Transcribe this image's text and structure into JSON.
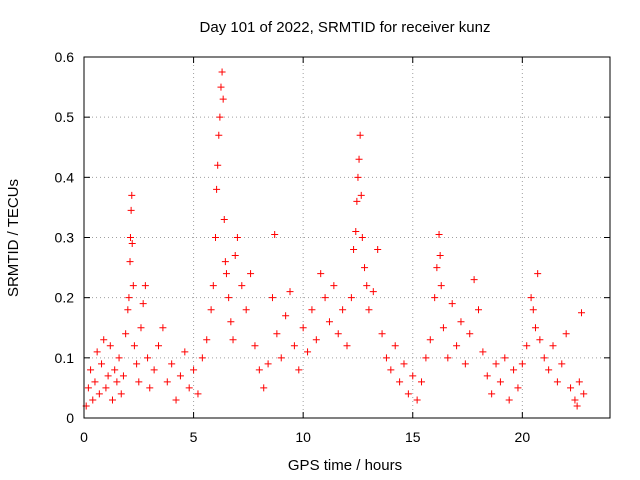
{
  "chart_data": {
    "type": "scatter",
    "title": "Day 101 of 2022, SRMTID for receiver kunz",
    "xlabel": "GPS time / hours",
    "ylabel": "SRMTID / TECUs",
    "xlim": [
      0,
      24
    ],
    "ylim": [
      0,
      0.6
    ],
    "grid": true,
    "marker": "+",
    "color": "#ff0000",
    "x_ticks": [
      0,
      5,
      10,
      15,
      20
    ],
    "x_tick_labels": [
      "0",
      "5",
      "10",
      "15",
      "20"
    ],
    "y_ticks": [
      0,
      0.1,
      0.2,
      0.3,
      0.4,
      0.5,
      0.6
    ],
    "y_tick_labels": [
      "0",
      "0.1",
      "0.2",
      "0.3",
      "0.4",
      "0.5",
      "0.6"
    ],
    "series": [
      {
        "name": "SRMTID",
        "points": [
          [
            0.1,
            0.02
          ],
          [
            0.2,
            0.05
          ],
          [
            0.3,
            0.08
          ],
          [
            0.4,
            0.03
          ],
          [
            0.5,
            0.06
          ],
          [
            0.6,
            0.11
          ],
          [
            0.7,
            0.04
          ],
          [
            0.8,
            0.09
          ],
          [
            0.9,
            0.13
          ],
          [
            1.0,
            0.05
          ],
          [
            1.1,
            0.07
          ],
          [
            1.2,
            0.12
          ],
          [
            1.3,
            0.03
          ],
          [
            1.4,
            0.08
          ],
          [
            1.5,
            0.06
          ],
          [
            1.6,
            0.1
          ],
          [
            1.7,
            0.04
          ],
          [
            1.8,
            0.07
          ],
          [
            1.9,
            0.14
          ],
          [
            2.0,
            0.18
          ],
          [
            2.05,
            0.2
          ],
          [
            2.1,
            0.26
          ],
          [
            2.12,
            0.3
          ],
          [
            2.15,
            0.345
          ],
          [
            2.18,
            0.37
          ],
          [
            2.2,
            0.29
          ],
          [
            2.25,
            0.22
          ],
          [
            2.3,
            0.12
          ],
          [
            2.4,
            0.09
          ],
          [
            2.5,
            0.06
          ],
          [
            2.6,
            0.15
          ],
          [
            2.7,
            0.19
          ],
          [
            2.8,
            0.22
          ],
          [
            2.9,
            0.1
          ],
          [
            3.0,
            0.05
          ],
          [
            3.2,
            0.08
          ],
          [
            3.4,
            0.12
          ],
          [
            3.6,
            0.15
          ],
          [
            3.8,
            0.06
          ],
          [
            4.0,
            0.09
          ],
          [
            4.2,
            0.03
          ],
          [
            4.4,
            0.07
          ],
          [
            4.6,
            0.11
          ],
          [
            4.8,
            0.05
          ],
          [
            5.0,
            0.08
          ],
          [
            5.2,
            0.04
          ],
          [
            5.4,
            0.1
          ],
          [
            5.6,
            0.13
          ],
          [
            5.8,
            0.18
          ],
          [
            5.9,
            0.22
          ],
          [
            6.0,
            0.3
          ],
          [
            6.05,
            0.38
          ],
          [
            6.1,
            0.42
          ],
          [
            6.15,
            0.47
          ],
          [
            6.2,
            0.5
          ],
          [
            6.25,
            0.55
          ],
          [
            6.3,
            0.575
          ],
          [
            6.35,
            0.53
          ],
          [
            6.4,
            0.33
          ],
          [
            6.45,
            0.26
          ],
          [
            6.5,
            0.24
          ],
          [
            6.6,
            0.2
          ],
          [
            6.7,
            0.16
          ],
          [
            6.8,
            0.13
          ],
          [
            6.9,
            0.27
          ],
          [
            7.0,
            0.3
          ],
          [
            7.2,
            0.22
          ],
          [
            7.4,
            0.18
          ],
          [
            7.6,
            0.24
          ],
          [
            7.8,
            0.12
          ],
          [
            8.0,
            0.08
          ],
          [
            8.2,
            0.05
          ],
          [
            8.4,
            0.09
          ],
          [
            8.6,
            0.2
          ],
          [
            8.7,
            0.305
          ],
          [
            8.8,
            0.14
          ],
          [
            9.0,
            0.1
          ],
          [
            9.2,
            0.17
          ],
          [
            9.4,
            0.21
          ],
          [
            9.6,
            0.12
          ],
          [
            9.8,
            0.08
          ],
          [
            10.0,
            0.15
          ],
          [
            10.2,
            0.11
          ],
          [
            10.4,
            0.18
          ],
          [
            10.6,
            0.13
          ],
          [
            10.8,
            0.24
          ],
          [
            11.0,
            0.2
          ],
          [
            11.2,
            0.16
          ],
          [
            11.4,
            0.22
          ],
          [
            11.6,
            0.14
          ],
          [
            11.8,
            0.18
          ],
          [
            12.0,
            0.12
          ],
          [
            12.2,
            0.2
          ],
          [
            12.3,
            0.28
          ],
          [
            12.4,
            0.31
          ],
          [
            12.45,
            0.36
          ],
          [
            12.5,
            0.4
          ],
          [
            12.55,
            0.43
          ],
          [
            12.6,
            0.47
          ],
          [
            12.65,
            0.37
          ],
          [
            12.7,
            0.3
          ],
          [
            12.8,
            0.25
          ],
          [
            12.9,
            0.22
          ],
          [
            13.0,
            0.18
          ],
          [
            13.2,
            0.21
          ],
          [
            13.4,
            0.28
          ],
          [
            13.6,
            0.14
          ],
          [
            13.8,
            0.1
          ],
          [
            14.0,
            0.08
          ],
          [
            14.2,
            0.12
          ],
          [
            14.4,
            0.06
          ],
          [
            14.6,
            0.09
          ],
          [
            14.8,
            0.04
          ],
          [
            15.0,
            0.07
          ],
          [
            15.2,
            0.03
          ],
          [
            15.4,
            0.06
          ],
          [
            15.6,
            0.1
          ],
          [
            15.8,
            0.13
          ],
          [
            16.0,
            0.2
          ],
          [
            16.1,
            0.25
          ],
          [
            16.2,
            0.305
          ],
          [
            16.25,
            0.27
          ],
          [
            16.3,
            0.22
          ],
          [
            16.4,
            0.15
          ],
          [
            16.6,
            0.1
          ],
          [
            16.8,
            0.19
          ],
          [
            17.0,
            0.12
          ],
          [
            17.2,
            0.16
          ],
          [
            17.4,
            0.09
          ],
          [
            17.6,
            0.14
          ],
          [
            17.8,
            0.23
          ],
          [
            18.0,
            0.18
          ],
          [
            18.2,
            0.11
          ],
          [
            18.4,
            0.07
          ],
          [
            18.6,
            0.04
          ],
          [
            18.8,
            0.09
          ],
          [
            19.0,
            0.06
          ],
          [
            19.2,
            0.1
          ],
          [
            19.4,
            0.03
          ],
          [
            19.6,
            0.08
          ],
          [
            19.8,
            0.05
          ],
          [
            20.0,
            0.09
          ],
          [
            20.2,
            0.12
          ],
          [
            20.4,
            0.2
          ],
          [
            20.5,
            0.18
          ],
          [
            20.6,
            0.15
          ],
          [
            20.7,
            0.24
          ],
          [
            20.8,
            0.13
          ],
          [
            21.0,
            0.1
          ],
          [
            21.2,
            0.08
          ],
          [
            21.4,
            0.12
          ],
          [
            21.6,
            0.06
          ],
          [
            21.8,
            0.09
          ],
          [
            22.0,
            0.14
          ],
          [
            22.2,
            0.05
          ],
          [
            22.4,
            0.03
          ],
          [
            22.5,
            0.02
          ],
          [
            22.6,
            0.06
          ],
          [
            22.7,
            0.175
          ],
          [
            22.8,
            0.04
          ]
        ]
      }
    ]
  }
}
